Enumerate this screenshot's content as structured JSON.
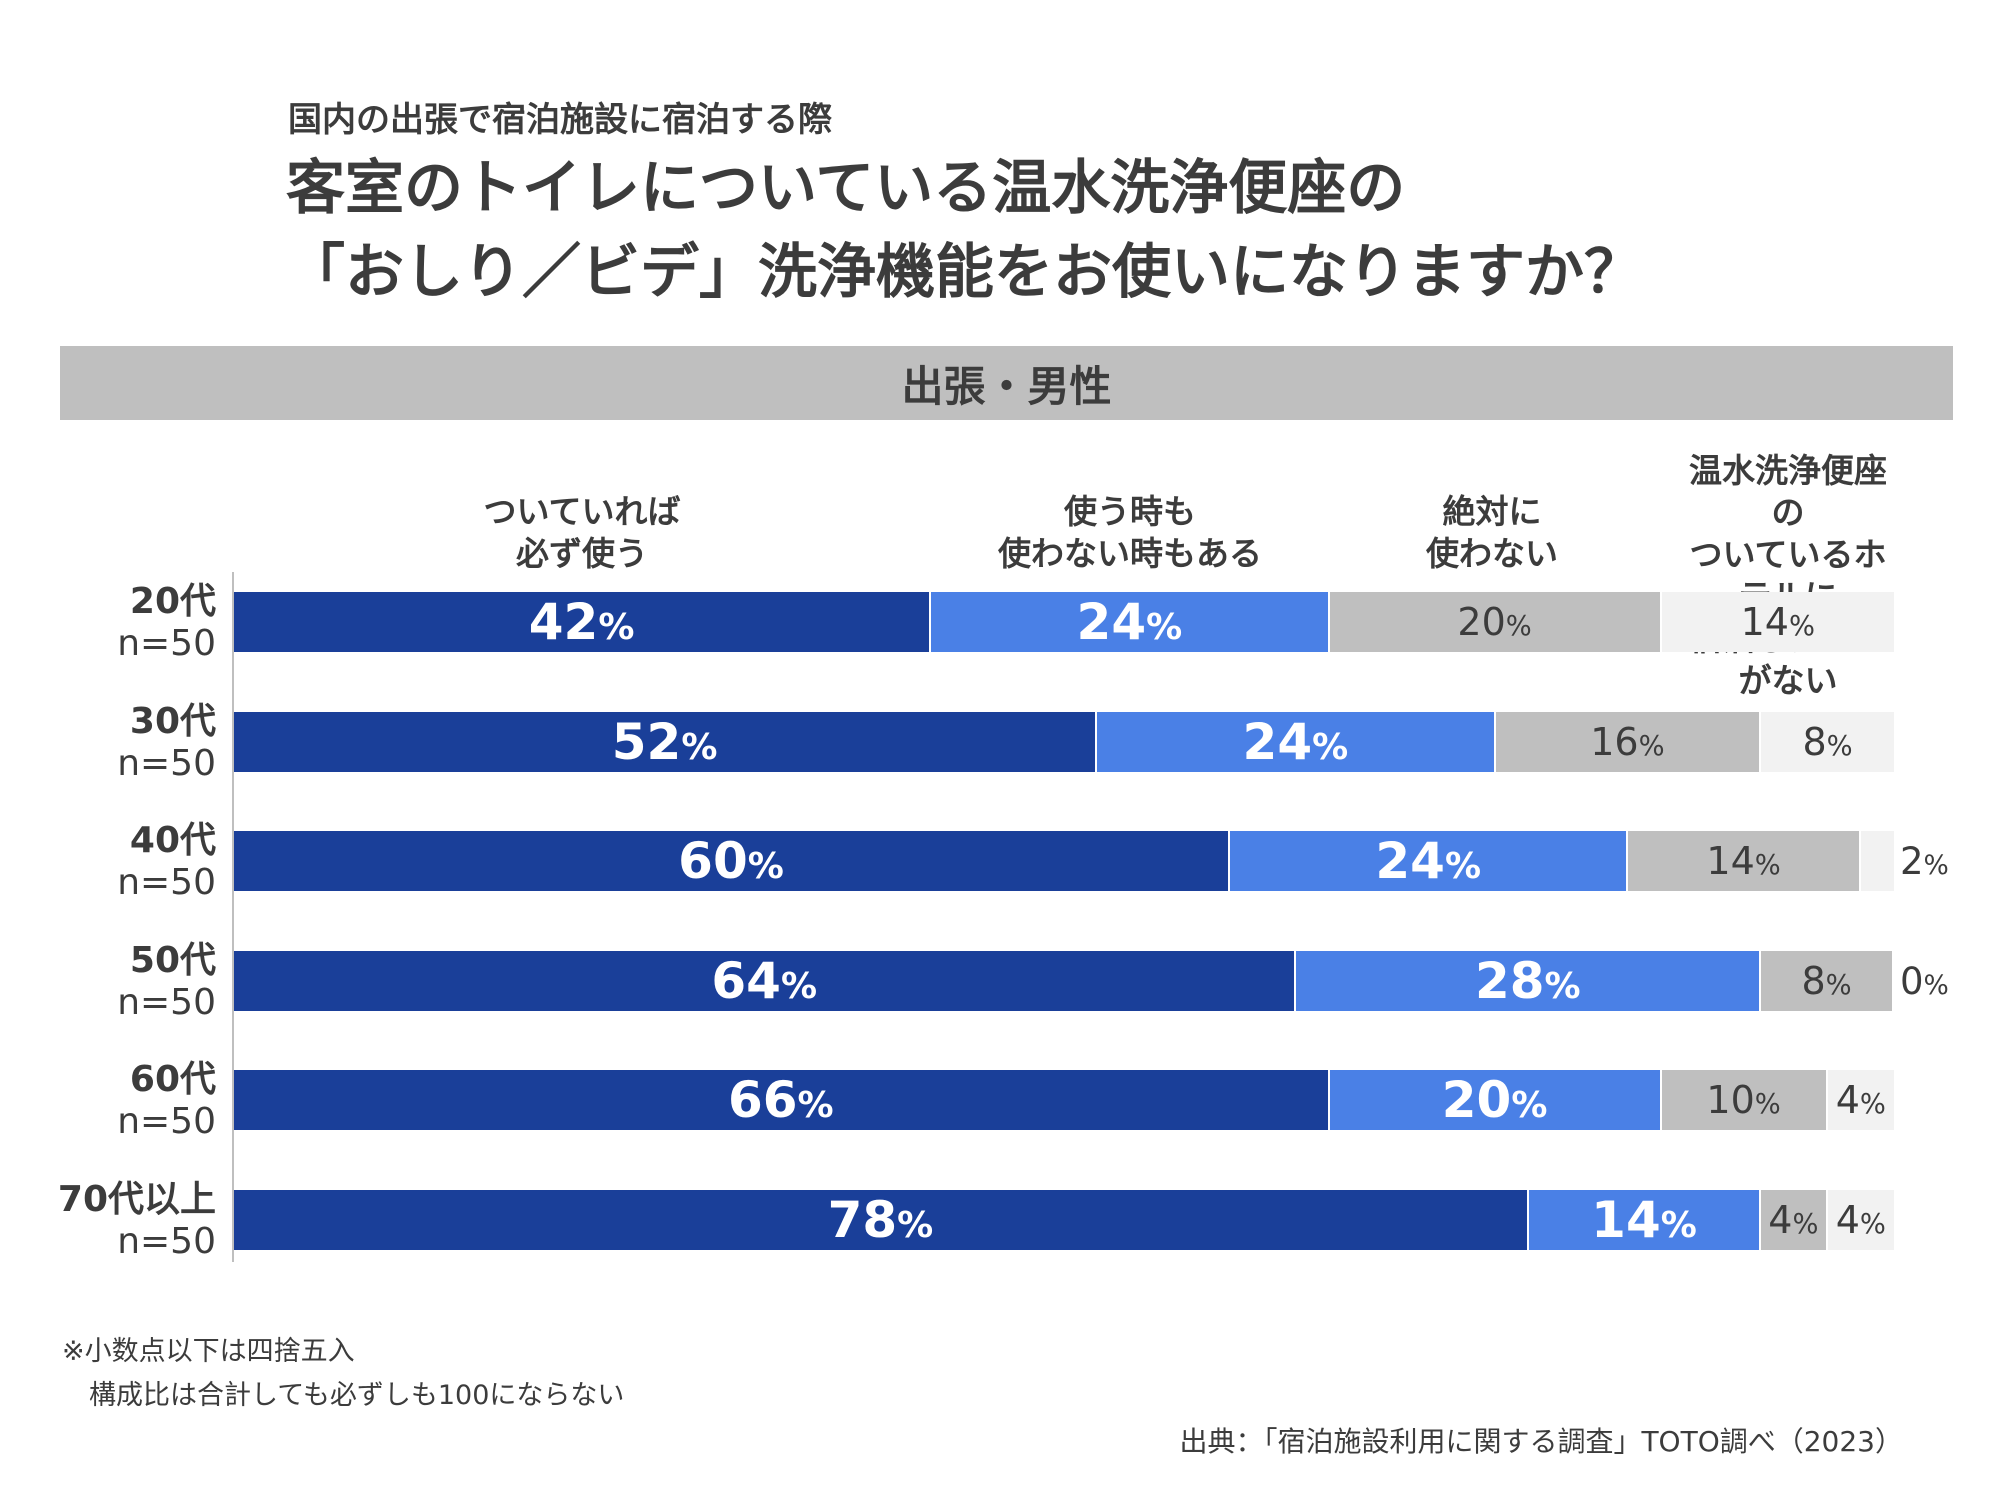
{
  "header": {
    "subtitle": "国内の出張で宿泊施設に宿泊する際",
    "title_line1": "客室のトイレについている温水洗浄便座の",
    "title_line2": "「おしり／ビデ」洗浄機能をお使いになりますか？"
  },
  "band_label": "出張・男性",
  "chart_data": {
    "type": "bar",
    "orientation": "horizontal",
    "stacked": true,
    "unit": "%",
    "categories": [
      {
        "age": "20代",
        "n": "n=50"
      },
      {
        "age": "30代",
        "n": "n=50"
      },
      {
        "age": "40代",
        "n": "n=50"
      },
      {
        "age": "50代",
        "n": "n=50"
      },
      {
        "age": "60代",
        "n": "n=50"
      },
      {
        "age": "70代以上",
        "n": "n=50"
      }
    ],
    "series": [
      {
        "name": "ついていれば\n必ず使う",
        "color": "#1a3f99",
        "label_color": "#ffffff",
        "bold": true,
        "values": [
          42,
          52,
          60,
          64,
          66,
          78
        ]
      },
      {
        "name": "使う時も\n使わない時もある",
        "color": "#4a80e6",
        "label_color": "#ffffff",
        "bold": true,
        "values": [
          24,
          24,
          24,
          28,
          20,
          14
        ]
      },
      {
        "name": "絶対に\n使わない",
        "color": "#bfbfbf",
        "label_color": "#3c3c3c",
        "bold": false,
        "values": [
          20,
          16,
          14,
          8,
          10,
          4
        ]
      },
      {
        "name": "温水洗浄便座の\nついているホテルに\n宿泊したことがない",
        "color": "#f2f2f2",
        "label_color": "#3c3c3c",
        "bold": false,
        "values": [
          14,
          8,
          2,
          0,
          4,
          4
        ]
      }
    ],
    "xlim": [
      0,
      100
    ],
    "legend": "top"
  },
  "footnote": "※小数点以下は四捨五入\n　構成比は合計しても必ずしも100にならない",
  "source": "出典：「宿泊施設利用に関する調査」TOTO調べ（2023）"
}
